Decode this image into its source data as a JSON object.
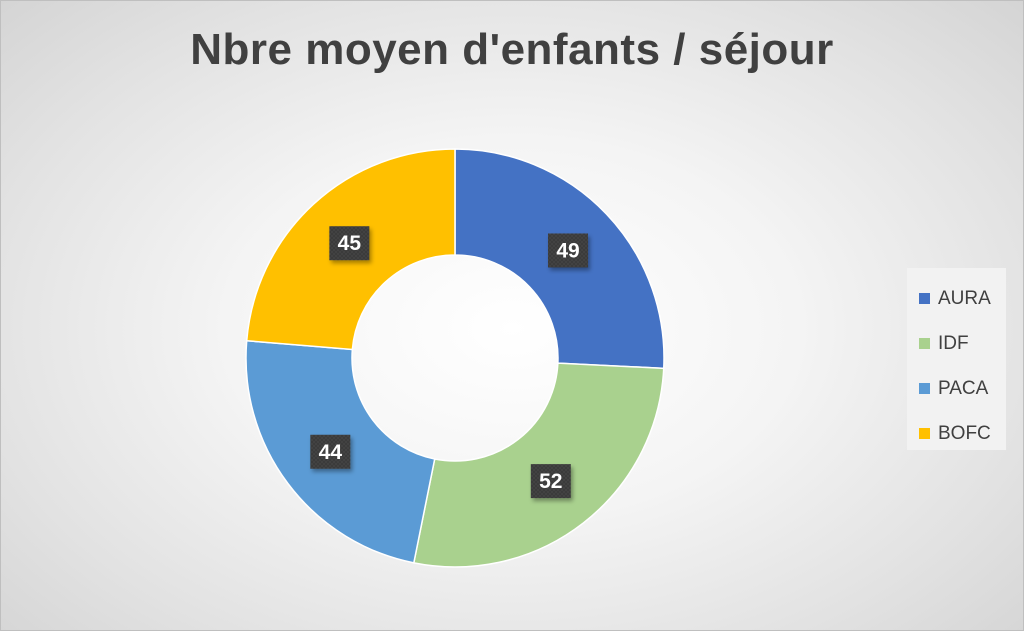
{
  "chart_data": {
    "type": "pie",
    "subtype": "doughnut",
    "title": "Nbre moyen d'enfants / séjour",
    "categories": [
      "AURA",
      "IDF",
      "PACA",
      "BOFC"
    ],
    "values": [
      49,
      52,
      44,
      45
    ],
    "colors": [
      "#4472C4",
      "#A9D18E",
      "#5B9BD5",
      "#FFC000"
    ],
    "data_labels": [
      "49",
      "52",
      "44",
      "45"
    ],
    "legend_position": "right",
    "data_label_style": "dark box with white bold text"
  }
}
